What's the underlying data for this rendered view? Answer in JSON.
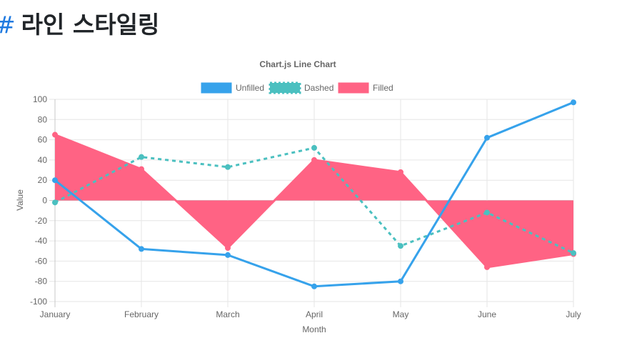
{
  "page": {
    "heading_hash": "#",
    "heading": "라인 스타일링"
  },
  "chart_data": {
    "type": "line",
    "title": "Chart.js Line Chart",
    "xlabel": "Month",
    "ylabel": "Value",
    "categories": [
      "January",
      "February",
      "March",
      "April",
      "May",
      "June",
      "July"
    ],
    "ylim": [
      -100,
      100
    ],
    "yticks": [
      100,
      80,
      60,
      40,
      20,
      0,
      -20,
      -40,
      -60,
      -80,
      -100
    ],
    "grid": true,
    "legend_position": "top",
    "series": [
      {
        "name": "Unfilled",
        "style": "solid",
        "fill": false,
        "color": "#36a2eb",
        "values": [
          20,
          -48,
          -54,
          -85,
          -80,
          62,
          97
        ]
      },
      {
        "name": "Dashed",
        "style": "dashed",
        "fill": false,
        "color": "#4bc0c0",
        "values": [
          -2,
          43,
          33,
          52,
          -45,
          -12,
          -52
        ]
      },
      {
        "name": "Filled",
        "style": "solid",
        "fill": true,
        "color": "#ff6384",
        "values": [
          65,
          31,
          -47,
          40,
          28,
          -66,
          -53
        ]
      }
    ]
  }
}
